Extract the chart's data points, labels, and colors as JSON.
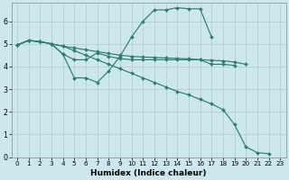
{
  "xlabel": "Humidex (Indice chaleur)",
  "background_color": "#cce8ec",
  "grid_color": "#aaccd0",
  "line_color": "#2e7d6e",
  "xlim": [
    -0.5,
    23.5
  ],
  "ylim": [
    0,
    6.8
  ],
  "yticks": [
    0,
    1,
    2,
    3,
    4,
    5,
    6
  ],
  "xticks": [
    0,
    1,
    2,
    3,
    4,
    5,
    6,
    7,
    8,
    9,
    10,
    11,
    12,
    13,
    14,
    15,
    16,
    17,
    18,
    19,
    20,
    21,
    22,
    23
  ],
  "line1_x": [
    0,
    1,
    2,
    3,
    4,
    5,
    6,
    7,
    8,
    9,
    10,
    11,
    12,
    13,
    14,
    15,
    16,
    17,
    18,
    19,
    20
  ],
  "line1_y": [
    4.95,
    5.15,
    5.1,
    5.0,
    4.9,
    4.82,
    4.74,
    4.66,
    4.58,
    4.5,
    4.45,
    4.42,
    4.4,
    4.38,
    4.36,
    4.34,
    4.3,
    4.28,
    4.25,
    4.2,
    4.1
  ],
  "line2_x": [
    0,
    1,
    2,
    3,
    4,
    5,
    6,
    7,
    8,
    9,
    10,
    11,
    12,
    13,
    14,
    15,
    16,
    17
  ],
  "line2_y": [
    4.95,
    5.15,
    5.1,
    5.0,
    4.55,
    3.5,
    3.5,
    3.3,
    3.8,
    4.45,
    5.3,
    6.0,
    6.5,
    6.5,
    6.6,
    6.55,
    6.55,
    5.3
  ],
  "line3_x": [
    0,
    1,
    2,
    3,
    4,
    5,
    6,
    7,
    8,
    9,
    10,
    11,
    12,
    13,
    14,
    15,
    16,
    17,
    18,
    19
  ],
  "line3_y": [
    4.95,
    5.15,
    5.1,
    5.0,
    4.55,
    4.3,
    4.3,
    4.6,
    4.45,
    4.35,
    4.3,
    4.3,
    4.3,
    4.3,
    4.3,
    4.3,
    4.3,
    4.1,
    4.1,
    4.05
  ],
  "line4_x": [
    0,
    1,
    2,
    3,
    4,
    5,
    6,
    7,
    8,
    9,
    10,
    11,
    12,
    13,
    14,
    15,
    16,
    17,
    18,
    19,
    20,
    21,
    22
  ],
  "line4_y": [
    4.95,
    5.15,
    5.1,
    5.0,
    4.9,
    4.7,
    4.5,
    4.3,
    4.1,
    3.9,
    3.7,
    3.5,
    3.3,
    3.1,
    2.9,
    2.75,
    2.55,
    2.35,
    2.1,
    1.45,
    0.45,
    0.2,
    0.15
  ],
  "xlabel_fontsize": 6.5,
  "tick_fontsize": 5.2,
  "lw": 0.85,
  "ms": 2.0
}
